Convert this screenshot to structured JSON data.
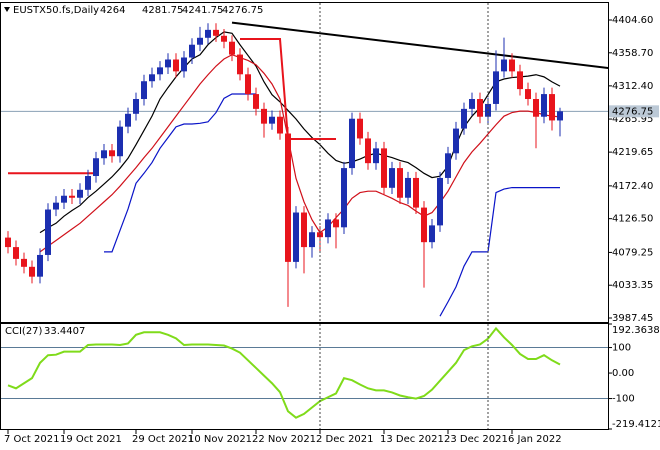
{
  "chart_data": {
    "type": "candlestick",
    "title": "EUSTX50.fs,Daily",
    "categories": [
      "7 Oct 2021",
      null,
      null,
      null,
      null,
      null,
      null,
      "19 Oct 2021",
      null,
      null,
      null,
      null,
      null,
      null,
      null,
      null,
      "29 Oct 2021",
      null,
      null,
      null,
      null,
      null,
      null,
      "10 Nov 2021",
      null,
      null,
      null,
      null,
      null,
      null,
      null,
      "22 Nov 2021",
      null,
      null,
      null,
      null,
      null,
      null,
      null,
      "2 Dec 2021",
      null,
      null,
      null,
      null,
      null,
      null,
      null,
      "13 Dec 2021",
      null,
      null,
      null,
      null,
      null,
      null,
      null,
      "23 Dec 2021",
      null,
      null,
      null,
      null,
      null,
      null,
      null,
      "6 Jan 2022",
      null,
      null,
      null,
      null,
      null,
      null
    ],
    "open": [
      4100,
      4086.7,
      4070.2,
      4059.1,
      4045.3,
      4075.7,
      4139.3,
      4148.9,
      4158.6,
      4155.8,
      4166.9,
      4186.2,
      4211.1,
      4222.2,
      4213.9,
      4255.3,
      4273.3,
      4294.0,
      4318.9,
      4328.6,
      4338.3,
      4349.3,
      4332.7,
      4352.1,
      4370.0,
      4379.7,
      4390.8,
      4382.5,
      4374.2,
      4356.2,
      4328.6,
      4300.9,
      4280.2,
      4259.5,
      4269.2,
      4245.7,
      4066.0,
      4135.1,
      4086.7,
      4107.5,
      4100.6,
      4125.4,
      4114.4,
      4197.3,
      4266.4,
      4238.8,
      4204.2,
      4224.9,
      4169.7,
      4197.3,
      4155.8,
      4183.5,
      4142.0,
      4093.6,
      4117.1,
      4183.5,
      4218.0,
      4252.6,
      4280.2,
      4294.0,
      4269.2,
      4287.1,
      4332.7,
      4349.3,
      4332.7,
      4307.9,
      4294.0,
      4269.2,
      4300.9,
      4264
    ],
    "high": [
      4109,
      4096,
      4079,
      4068,
      4085,
      4148,
      4158,
      4168,
      4168,
      4176,
      4195,
      4220,
      4231,
      4231,
      4264,
      4282,
      4303,
      4328,
      4338,
      4347,
      4358,
      4358,
      4361,
      4379,
      4395,
      4400,
      4400,
      4392,
      4383,
      4365,
      4338,
      4310,
      4289,
      4278,
      4278,
      4255,
      4144,
      4144,
      4116,
      4116,
      4134,
      4134,
      4206,
      4275,
      4275,
      4248,
      4234,
      4234,
      4206,
      4206,
      4192,
      4192,
      4151,
      4126,
      4192,
      4227,
      4262,
      4289,
      4303,
      4303,
      4296,
      4362,
      4380,
      4358,
      4342,
      4317,
      4303,
      4310,
      4310,
      4281.75
    ],
    "low": [
      4078,
      4061,
      4050,
      4036,
      4036,
      4067,
      4130,
      4140,
      4147,
      4147,
      4158,
      4177,
      4202,
      4205,
      4205,
      4246,
      4264,
      4285,
      4310,
      4320,
      4329,
      4324,
      4324,
      4343,
      4361,
      4371,
      4374,
      4365,
      4347,
      4320,
      4292,
      4271,
      4240,
      4251,
      4237,
      4003,
      4057,
      4050,
      4072,
      4080,
      4092,
      4085,
      4105,
      4188,
      4230,
      4195,
      4195,
      4160,
      4161,
      4147,
      4147,
      4133,
      4030,
      4085,
      4108,
      4175,
      4209,
      4244,
      4271,
      4260,
      4260,
      4278,
      4324,
      4324,
      4299,
      4285,
      4225,
      4260,
      4250,
      4241.75
    ],
    "close": [
      4086.7,
      4070.2,
      4059.1,
      4045.3,
      4075.7,
      4139.3,
      4148.9,
      4158.6,
      4155.8,
      4166.9,
      4186.2,
      4211.1,
      4222.2,
      4213.9,
      4255.3,
      4273.3,
      4294.0,
      4318.9,
      4328.6,
      4338.3,
      4349.3,
      4332.7,
      4352.1,
      4370.0,
      4379.7,
      4390.8,
      4382.5,
      4374.2,
      4356.2,
      4328.6,
      4300.9,
      4280.2,
      4259.5,
      4269.2,
      4245.7,
      4066.0,
      4135.1,
      4086.7,
      4107.5,
      4100.6,
      4125.4,
      4114.4,
      4197.3,
      4266.4,
      4238.8,
      4204.2,
      4224.9,
      4169.7,
      4197.3,
      4155.8,
      4183.5,
      4142.0,
      4093.6,
      4117.1,
      4183.5,
      4218.0,
      4252.6,
      4280.2,
      4294.0,
      4269.2,
      4287.1,
      4332.7,
      4349.3,
      4332.7,
      4307.9,
      4294.0,
      4269.2,
      4300.9,
      4264.0,
      4276.75
    ],
    "up_color": "#1c2fb0",
    "down_color": "#e8141c",
    "lines": [
      {
        "color": "#000000",
        "values": [
          null,
          null,
          null,
          null,
          4107,
          4114,
          4120,
          4130,
          4138,
          4145,
          4156,
          4165,
          4175,
          4185,
          4197,
          4211,
          4230,
          4250,
          4270,
          4294,
          4310,
          4325,
          4338,
          4350,
          4356,
          4370,
          4380,
          4388,
          4386,
          4370,
          4355,
          4340,
          4318,
          4300,
          4290,
          4278,
          4266,
          4252,
          4240,
          4230,
          4218,
          4208,
          4204,
          4206,
          4210,
          4215,
          4218,
          4215,
          4212,
          4208,
          4205,
          4198,
          4190,
          4184,
          4186,
          4200,
          4230,
          4255,
          4270,
          4282,
          4300,
          4318,
          4322,
          4324,
          4325,
          4326,
          4328,
          4325,
          4318,
          4312
        ]
      },
      {
        "color": "#d0101a",
        "values": [
          null,
          null,
          null,
          null,
          4080,
          4088,
          4096,
          4104,
          4112,
          4120,
          4130,
          4140,
          4150,
          4160,
          4172,
          4185,
          4198,
          4212,
          4225,
          4240,
          4255,
          4270,
          4285,
          4300,
          4315,
          4328,
          4340,
          4350,
          4356,
          4352,
          4348,
          4342,
          4330,
          4315,
          4294,
          4240,
          4183,
          4150,
          4125,
          4107,
          4115,
          4128,
          4140,
          4155,
          4163,
          4165,
          4165,
          4160,
          4155,
          4149,
          4145,
          4137,
          4130,
          4135,
          4149,
          4165,
          4185,
          4205,
          4220,
          4232,
          4245,
          4258,
          4270,
          4275,
          4277,
          4277,
          4275,
          4272,
          4270,
          4269
        ]
      },
      {
        "color": "#0a14c8",
        "values": [
          null,
          null,
          null,
          null,
          null,
          null,
          null,
          null,
          null,
          null,
          null,
          null,
          4080,
          4080,
          4110,
          4140,
          4176,
          4190,
          4205,
          4225,
          4240,
          4255,
          4259,
          4259,
          4260,
          4262,
          4275,
          4295,
          4301,
          4301,
          4301,
          4301,
          null,
          null,
          null,
          null,
          null,
          null,
          null,
          null,
          null,
          null,
          null,
          null,
          null,
          null,
          null,
          null,
          null,
          null,
          null,
          null,
          null,
          null,
          3990,
          4010,
          4031,
          4060,
          4080,
          4080,
          4080,
          4163,
          4168,
          4170,
          4170,
          4170,
          4170,
          4170,
          4170,
          4170
        ]
      },
      {
        "color": "#e8141c",
        "values": [
          4190,
          4190,
          4190,
          4190,
          4190,
          4190,
          4190,
          4190,
          4190,
          4190,
          4190,
          4190,
          null,
          null,
          null,
          null,
          null,
          null,
          null,
          null,
          null,
          null,
          null,
          null,
          null,
          null,
          null,
          null,
          null,
          4378,
          4378,
          4378,
          4378,
          4378,
          4378,
          4238,
          4238,
          4238,
          4238,
          4238,
          4238,
          4238,
          null,
          null,
          null,
          null,
          null,
          null,
          null,
          null,
          null,
          null,
          null,
          null,
          null,
          null,
          null,
          null,
          null,
          null,
          null,
          null,
          null,
          null,
          null,
          null,
          null,
          null,
          null,
          null
        ]
      }
    ],
    "trendline": {
      "x": [
        28,
        79
      ],
      "y": [
        4401,
        4332
      ],
      "color": "#000000"
    },
    "ylim": [
      3981.85,
      4428.4
    ],
    "yticks": [
      {
        "value": 4404.6,
        "label": "4404.60"
      },
      {
        "value": 4358.7,
        "label": "4358.70"
      },
      {
        "value": 4312.4,
        "label": "4312.40"
      },
      4265.95,
      4219.65,
      {
        "value": 4172.4,
        "label": "4172.40"
      },
      {
        "value": 4126.5,
        "label": "4126.50"
      },
      4079.25,
      4033.35,
      3987.45
    ],
    "cci_label": "CCI(27)",
    "cci_value": 33.4407,
    "cci_color": "#7fdb1a",
    "cci": [
      -48,
      -60,
      -40,
      -20,
      40,
      70,
      72,
      84,
      84,
      84,
      110,
      112,
      112,
      112,
      110,
      116,
      150,
      160,
      160,
      160,
      150,
      136,
      110,
      112,
      112,
      112,
      110,
      108,
      96,
      80,
      50,
      20,
      -10,
      -40,
      -75,
      -150,
      -175,
      -160,
      -135,
      -110,
      -95,
      -80,
      -20,
      -28,
      -45,
      -60,
      -68,
      -68,
      -76,
      -88,
      -95,
      -100,
      -90,
      -65,
      -30,
      5,
      40,
      90,
      105,
      112,
      135,
      175,
      140,
      110,
      75,
      55,
      55,
      70,
      50,
      33.4407
    ],
    "y2lim": [
      -219.4121,
      192.3638
    ],
    "y2ticks": [
      192.3638,
      100,
      {
        "value": 0,
        "label": "0.00"
      },
      -100,
      -219.4121
    ]
  }
}
